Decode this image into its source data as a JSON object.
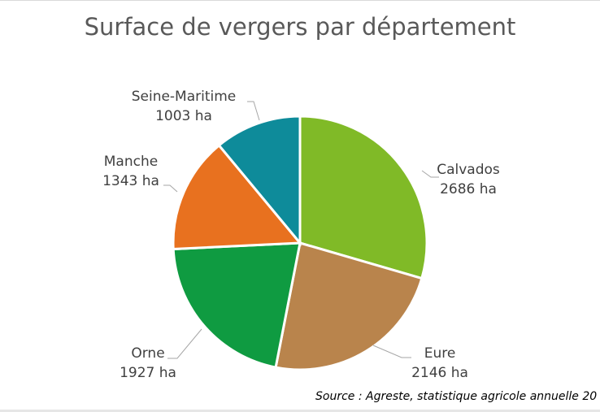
{
  "chart_data": {
    "type": "pie",
    "title": "Surface de vergers par département",
    "unit": "ha",
    "categories": [
      "Calvados",
      "Eure",
      "Orne",
      "Manche",
      "Seine-Maritime"
    ],
    "values": [
      2686,
      2146,
      1927,
      1343,
      1003
    ],
    "value_labels": [
      "2686 ha",
      "2146 ha",
      "1927 ha",
      "1343 ha",
      "1003 ha"
    ],
    "colors": [
      "#80ba27",
      "#b9844c",
      "#0f9b41",
      "#e8711f",
      "#0e8b9a"
    ],
    "start_angle": "top (12 o'clock), clockwise",
    "legend": "none (data labels with leader lines)"
  },
  "source": "Source : Agreste, statistique agricole annuelle 20"
}
